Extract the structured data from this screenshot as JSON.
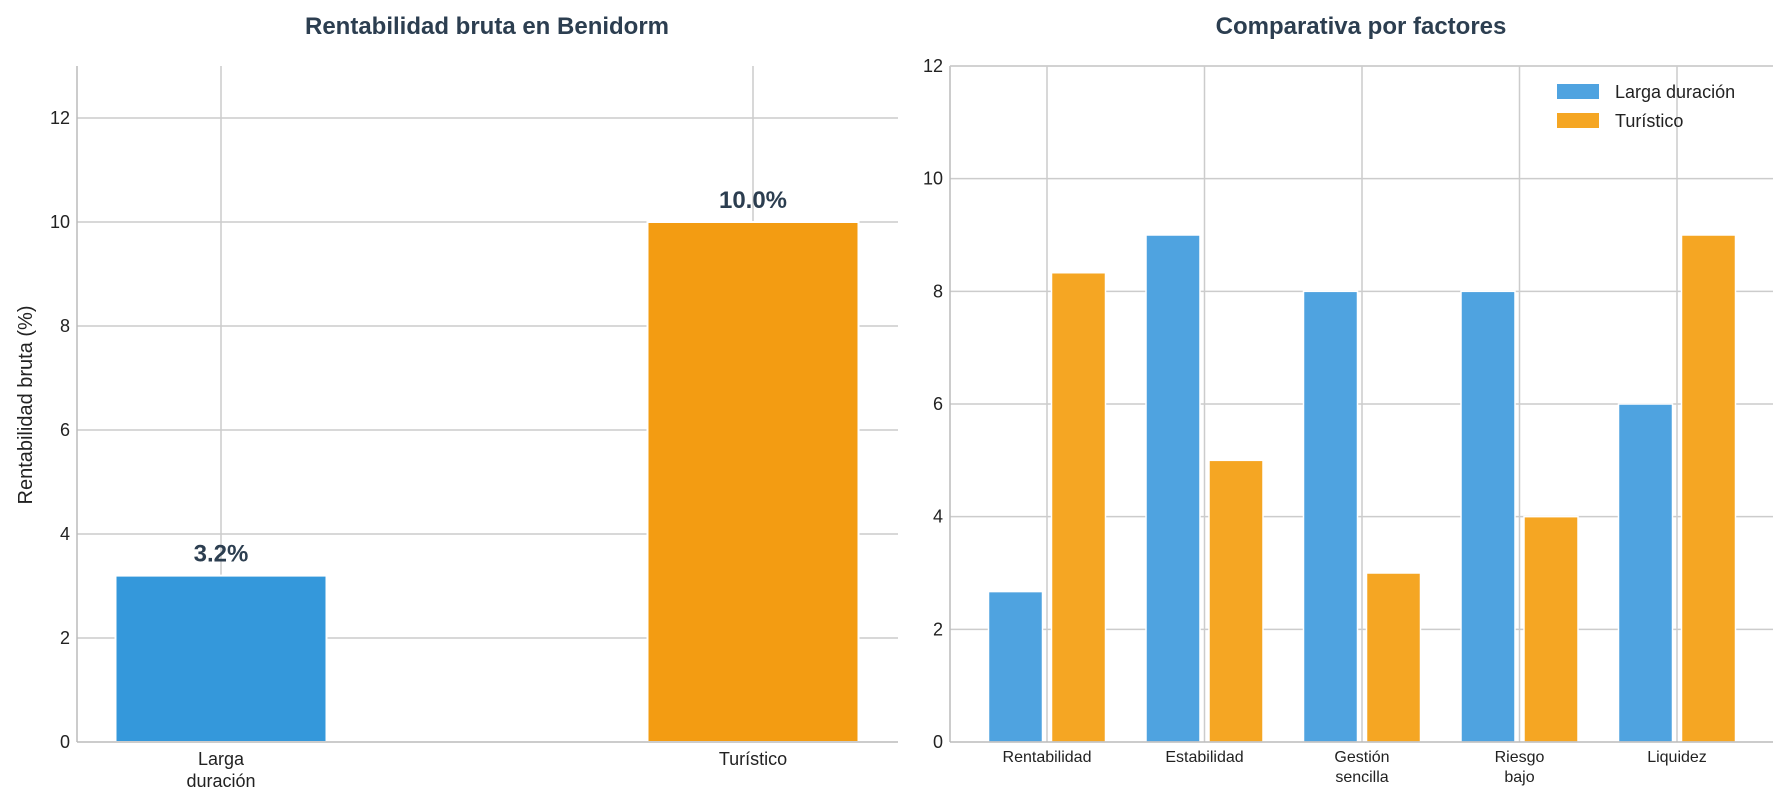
{
  "chart_data": [
    {
      "type": "bar",
      "title": "Rentabilidad bruta en Benidorm",
      "ylabel": "Rentabilidad bruta (%)",
      "xlabel": "",
      "categories": [
        [
          "Larga",
          "duración"
        ],
        [
          "Turístico"
        ]
      ],
      "values": [
        3.2,
        10.0
      ],
      "data_labels": [
        "3.2%",
        "10.0%"
      ],
      "colors": [
        "#3498db",
        "#f39c12"
      ],
      "ylim": [
        0,
        13
      ],
      "yticks": [
        0,
        2,
        4,
        6,
        8,
        10,
        12
      ],
      "grid": true
    },
    {
      "type": "bar",
      "title": "Comparativa por factores",
      "xlabel": "",
      "ylabel": "",
      "categories": [
        [
          "Rentabilidad"
        ],
        [
          "Estabilidad"
        ],
        [
          "Gestión",
          "sencilla"
        ],
        [
          "Riesgo",
          "bajo"
        ],
        [
          "Liquidez"
        ]
      ],
      "series": [
        {
          "name": "Larga duración",
          "values": [
            2.67,
            9,
            8,
            8,
            6
          ],
          "color": "#4fa3e0"
        },
        {
          "name": "Turístico",
          "values": [
            8.33,
            5,
            3,
            4,
            9
          ],
          "color": "#f5a623"
        }
      ],
      "ylim": [
        0,
        12
      ],
      "yticks": [
        0,
        2,
        4,
        6,
        8,
        10,
        12
      ],
      "legend": "top-right",
      "grid": true
    }
  ]
}
